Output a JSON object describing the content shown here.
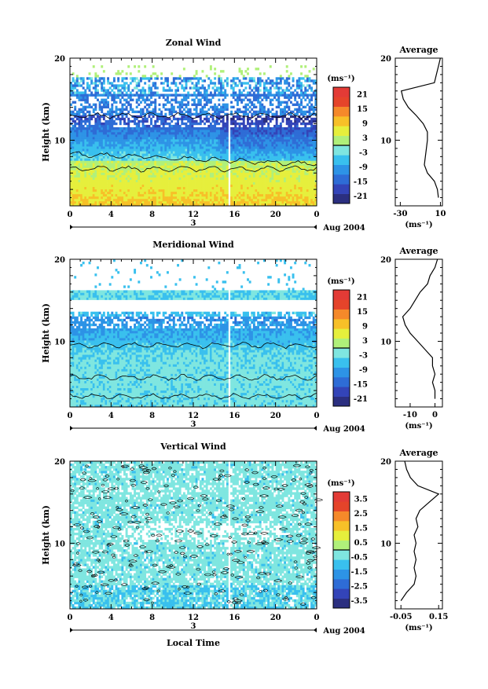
{
  "colorbar_colors": [
    "#2b2f80",
    "#3344b8",
    "#2e6cd6",
    "#2d93e6",
    "#39c0ee",
    "#7fe6e0",
    "#b0f07a",
    "#e6ef3c",
    "#f7c028",
    "#f5892a",
    "#e5442a",
    "#e33b36"
  ],
  "chart_data": [
    {
      "type": "heatmap",
      "title": "Zonal Wind",
      "ylabel": "Height (km)",
      "y_ticks": [
        "20",
        "10"
      ],
      "ylim": [
        2,
        20
      ],
      "x_ticks": [
        "0",
        "4",
        "8",
        "12",
        "16",
        "20",
        "0"
      ],
      "date_label": "3",
      "month_label": "Aug 2004",
      "colorbar": {
        "unit": "(ms⁻¹)",
        "ticks": [
          "21",
          "15",
          "9",
          "3",
          "-3",
          "-9",
          "-15",
          "-21"
        ]
      },
      "profile": {
        "title": "Average",
        "xlabel": "(ms⁻¹)",
        "x_ticks": [
          "-30",
          "10"
        ],
        "xlim": [
          -35,
          12
        ],
        "y_ticks": [
          "20",
          "10"
        ],
        "y_km": [
          3,
          4,
          5,
          6,
          7,
          8,
          9,
          10,
          11,
          12,
          13,
          14,
          15,
          16,
          17,
          18,
          19,
          20
        ],
        "values": [
          8,
          7,
          4,
          -3,
          -6,
          -5,
          -4,
          -3,
          -3,
          -7,
          -14,
          -22,
          -27,
          -29,
          4,
          6,
          8,
          10
        ]
      }
    },
    {
      "type": "heatmap",
      "title": "Meridional Wind",
      "ylabel": "Height (km)",
      "y_ticks": [
        "20",
        "10"
      ],
      "ylim": [
        2,
        20
      ],
      "x_ticks": [
        "0",
        "4",
        "8",
        "12",
        "16",
        "20",
        "0"
      ],
      "date_label": "3",
      "month_label": "Aug 2004",
      "colorbar": {
        "unit": "(ms⁻¹)",
        "ticks": [
          "21",
          "15",
          "9",
          "3",
          "-3",
          "-9",
          "-15",
          "-21"
        ]
      },
      "profile": {
        "title": "Average",
        "xlabel": "(ms⁻¹)",
        "x_ticks": [
          "-10",
          "0"
        ],
        "xlim": [
          -16,
          3
        ],
        "y_ticks": [
          "20",
          "10"
        ],
        "y_km": [
          3,
          4,
          5,
          6,
          7,
          8,
          9,
          10,
          11,
          12,
          13,
          14,
          15,
          16,
          17,
          18,
          19,
          20
        ],
        "values": [
          0,
          0,
          -1,
          0,
          -1,
          -1,
          -4,
          -7,
          -10,
          -12,
          -13,
          -10,
          -8,
          -6,
          -3,
          -2,
          0,
          1
        ]
      }
    },
    {
      "type": "heatmap",
      "title": "Vertical Wind",
      "ylabel": "Height (km)",
      "xlabel": "Local Time",
      "y_ticks": [
        "20",
        "10"
      ],
      "ylim": [
        2,
        20
      ],
      "x_ticks": [
        "0",
        "4",
        "8",
        "12",
        "16",
        "20",
        "0"
      ],
      "date_label": "3",
      "month_label": "Aug 2004",
      "colorbar": {
        "unit": "(ms⁻¹)",
        "ticks": [
          "3.5",
          "2.5",
          "1.5",
          "0.5",
          "-0.5",
          "-1.5",
          "-2.5",
          "-3.5"
        ]
      },
      "profile": {
        "title": "Average",
        "xlabel": "(ms⁻¹)",
        "x_ticks": [
          "-0.05",
          "0.15"
        ],
        "xlim": [
          -0.08,
          0.17
        ],
        "y_ticks": [
          "20",
          "10"
        ],
        "y_km": [
          3,
          4,
          5,
          6,
          7,
          8,
          9,
          10,
          11,
          12,
          13,
          14,
          15,
          16,
          17,
          18,
          19,
          20
        ],
        "values": [
          -0.05,
          -0.02,
          0.02,
          0.03,
          0.02,
          0.03,
          0.02,
          0.03,
          0.02,
          0.04,
          0.03,
          0.05,
          0.1,
          0.15,
          0.04,
          0.0,
          -0.02,
          -0.03
        ]
      }
    }
  ]
}
